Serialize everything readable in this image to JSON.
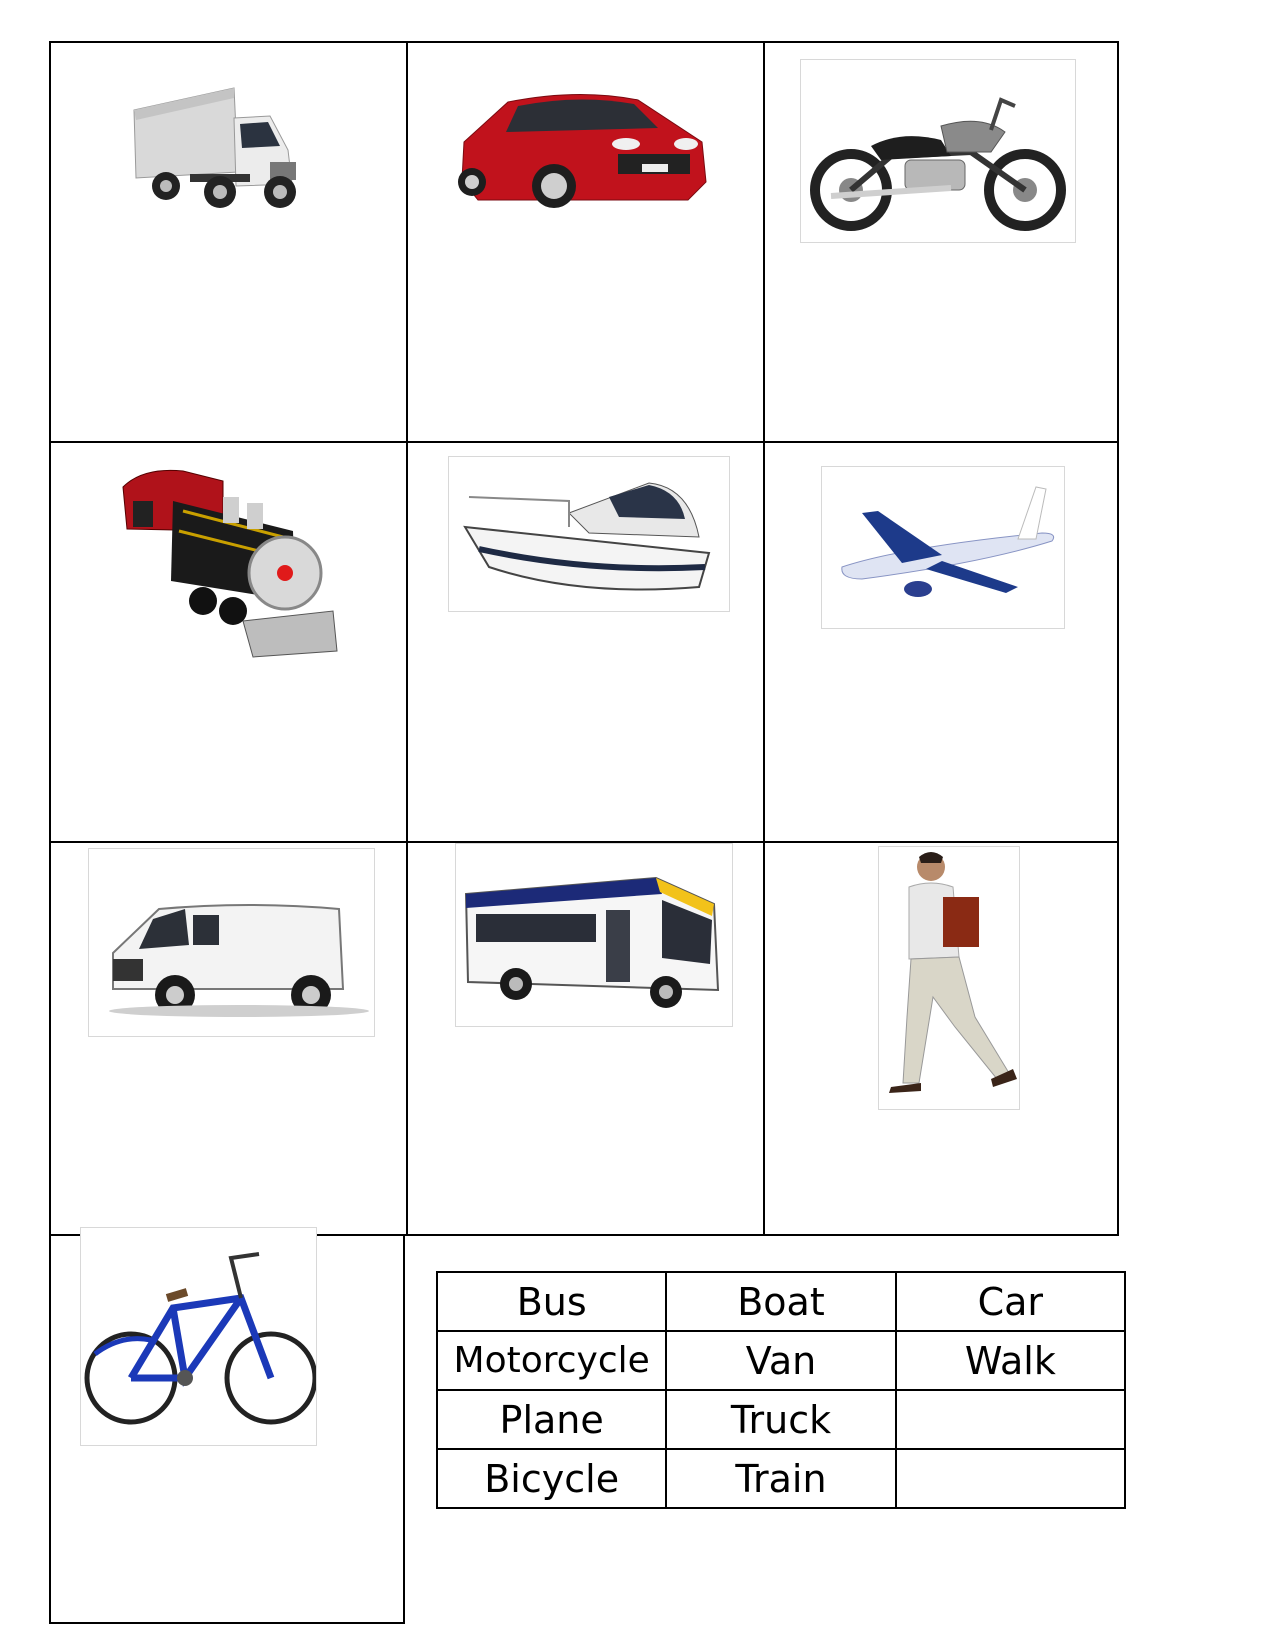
{
  "pictures": [
    {
      "icon": "truck-photo"
    },
    {
      "icon": "car-photo"
    },
    {
      "icon": "motorcycle-photo"
    },
    {
      "icon": "train-photo"
    },
    {
      "icon": "boat-photo"
    },
    {
      "icon": "plane-photo"
    },
    {
      "icon": "van-photo"
    },
    {
      "icon": "bus-photo"
    },
    {
      "icon": "walking-man-photo"
    },
    {
      "icon": "bicycle-photo"
    }
  ],
  "word_bank": [
    [
      "Bus",
      "Boat",
      "Car"
    ],
    [
      "Motorcycle",
      "Van",
      "Walk"
    ],
    [
      "Plane",
      "Truck",
      ""
    ],
    [
      "Bicycle",
      "Train",
      ""
    ]
  ]
}
